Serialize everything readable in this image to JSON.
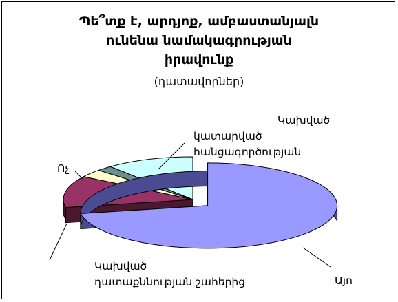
{
  "chart_data": {
    "type": "pie",
    "title": "Պե՞տք է, արդյոք, ամբաստանյալն ունենա նամակագրության իրավունք",
    "title_lines": [
      "Պե՞տք է, արդյոք, ամբաստանյալն",
      "ունենա նամակագրության",
      "իրավունք"
    ],
    "subtitle": "(դատավորներ)",
    "three_d": true,
    "slices": [
      {
        "label": "Այո",
        "label_lines": [
          "Այո"
        ],
        "value": 72,
        "color": "#9999ff",
        "side_color": "#4b4b94",
        "exploded": true
      },
      {
        "label": "Կախված դատաքննության շահերից",
        "label_lines": [
          "Կախված",
          "դատաքննության շահերից"
        ],
        "value": 12,
        "color": "#993366",
        "side_color": "#4a1930",
        "exploded": false
      },
      {
        "label": "Ոչ",
        "label_lines": [
          "Ոչ"
        ],
        "value": 3,
        "color": "#ffffcc",
        "side_color": "#8b8b66",
        "exploded": false
      },
      {
        "label": "Կախված կատարված հանցագործության",
        "label_lines": [
          "Կախված",
          "կատարված",
          "հանցագործության"
        ],
        "value": 2,
        "color": "#6b8e8e",
        "side_color": "#3a5050",
        "exploded": false
      },
      {
        "label": "",
        "label_lines": [],
        "value": 11,
        "color": "#ccffff",
        "side_color": "#6f9a9a",
        "exploded": false
      }
    ]
  }
}
